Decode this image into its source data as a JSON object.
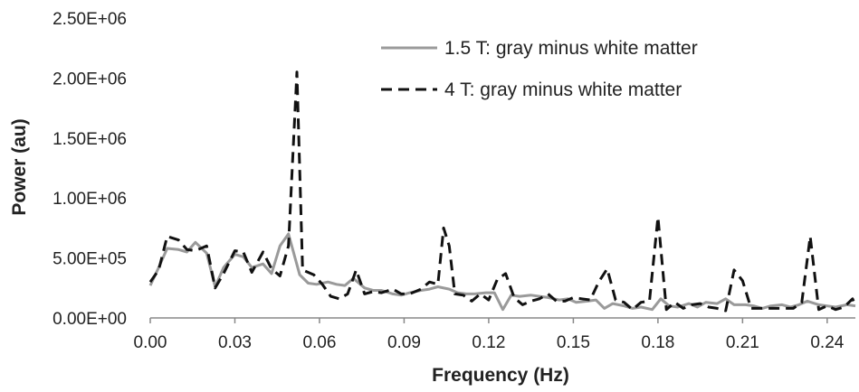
{
  "chart_data": {
    "type": "line",
    "title": "",
    "xlabel": "Frequency (Hz)",
    "ylabel": "Power (au)",
    "xlim": [
      0,
      0.25
    ],
    "ylim": [
      0,
      2500000
    ],
    "x_ticks": [
      "0.00",
      "0.03",
      "0.06",
      "0.09",
      "0.12",
      "0.15",
      "0.18",
      "0.21",
      "0.24"
    ],
    "y_ticks": [
      "0.00E+00",
      "5.00E+05",
      "1.00E+06",
      "1.50E+06",
      "2.00E+06",
      "2.50E+06"
    ],
    "grid": false,
    "legend_position": "top-right",
    "series": [
      {
        "name": "1.5 T: gray minus white matter",
        "color": "#9a9a9a",
        "style": "solid",
        "x": [
          0.0,
          0.003,
          0.006,
          0.01,
          0.013,
          0.016,
          0.02,
          0.023,
          0.026,
          0.03,
          0.033,
          0.036,
          0.04,
          0.043,
          0.046,
          0.049,
          0.053,
          0.056,
          0.059,
          0.063,
          0.066,
          0.069,
          0.072,
          0.076,
          0.079,
          0.082,
          0.086,
          0.089,
          0.092,
          0.096,
          0.099,
          0.102,
          0.106,
          0.109,
          0.112,
          0.115,
          0.119,
          0.122,
          0.125,
          0.128,
          0.131,
          0.135,
          0.138,
          0.141,
          0.145,
          0.148,
          0.151,
          0.155,
          0.158,
          0.161,
          0.164,
          0.168,
          0.171,
          0.174,
          0.178,
          0.181,
          0.184,
          0.187,
          0.191,
          0.194,
          0.197,
          0.201,
          0.204,
          0.207,
          0.211,
          0.214,
          0.217,
          0.22,
          0.224,
          0.227,
          0.23,
          0.233,
          0.237,
          0.24,
          0.243,
          0.247,
          0.25
        ],
        "y": [
          270000,
          420000,
          580000,
          570000,
          550000,
          630000,
          540000,
          260000,
          420000,
          530000,
          510000,
          420000,
          450000,
          370000,
          600000,
          700000,
          360000,
          290000,
          280000,
          300000,
          280000,
          270000,
          330000,
          250000,
          230000,
          230000,
          200000,
          190000,
          210000,
          230000,
          240000,
          260000,
          240000,
          210000,
          200000,
          200000,
          210000,
          210000,
          70000,
          190000,
          180000,
          190000,
          180000,
          170000,
          150000,
          160000,
          130000,
          140000,
          150000,
          80000,
          120000,
          100000,
          80000,
          90000,
          70000,
          160000,
          100000,
          90000,
          120000,
          90000,
          130000,
          120000,
          160000,
          110000,
          110000,
          100000,
          80000,
          100000,
          110000,
          90000,
          110000,
          140000,
          110000,
          100000,
          90000,
          110000,
          100000
        ]
      },
      {
        "name": "4 T: gray minus white matter",
        "color": "#111111",
        "style": "dashed",
        "x": [
          0.0,
          0.003,
          0.006,
          0.01,
          0.013,
          0.016,
          0.02,
          0.023,
          0.026,
          0.03,
          0.033,
          0.036,
          0.04,
          0.043,
          0.046,
          0.049,
          0.052,
          0.054,
          0.058,
          0.061,
          0.064,
          0.067,
          0.07,
          0.073,
          0.076,
          0.079,
          0.082,
          0.086,
          0.089,
          0.092,
          0.096,
          0.099,
          0.102,
          0.104,
          0.106,
          0.108,
          0.111,
          0.114,
          0.117,
          0.12,
          0.123,
          0.126,
          0.129,
          0.132,
          0.135,
          0.138,
          0.141,
          0.144,
          0.147,
          0.15,
          0.153,
          0.156,
          0.159,
          0.162,
          0.165,
          0.168,
          0.171,
          0.174,
          0.177,
          0.18,
          0.183,
          0.186,
          0.189,
          0.192,
          0.195,
          0.198,
          0.201,
          0.204,
          0.207,
          0.21,
          0.213,
          0.216,
          0.219,
          0.222,
          0.225,
          0.228,
          0.231,
          0.234,
          0.237,
          0.24,
          0.243,
          0.246,
          0.249,
          0.25
        ],
        "y": [
          300000,
          400000,
          680000,
          650000,
          570000,
          560000,
          600000,
          250000,
          370000,
          560000,
          550000,
          380000,
          550000,
          410000,
          350000,
          600000,
          2050000,
          400000,
          360000,
          280000,
          180000,
          160000,
          200000,
          400000,
          200000,
          220000,
          210000,
          240000,
          200000,
          200000,
          240000,
          300000,
          280000,
          750000,
          600000,
          200000,
          190000,
          140000,
          200000,
          150000,
          320000,
          370000,
          170000,
          110000,
          140000,
          160000,
          200000,
          140000,
          140000,
          170000,
          160000,
          150000,
          300000,
          410000,
          150000,
          130000,
          70000,
          130000,
          140000,
          840000,
          70000,
          130000,
          80000,
          110000,
          120000,
          90000,
          80000,
          60000,
          400000,
          310000,
          80000,
          80000,
          80000,
          80000,
          80000,
          80000,
          130000,
          680000,
          70000,
          100000,
          70000,
          90000,
          160000,
          100000
        ]
      }
    ]
  }
}
